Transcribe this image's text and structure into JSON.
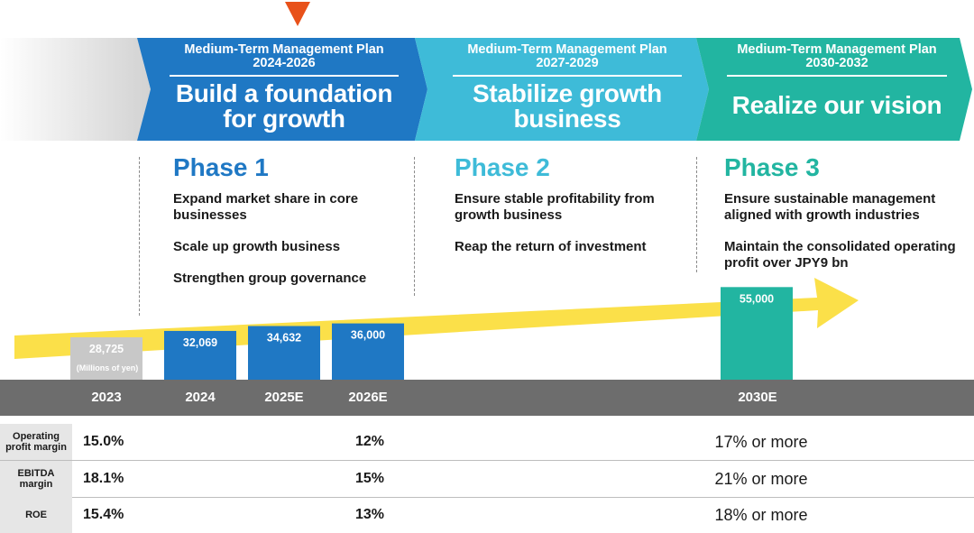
{
  "plans": [
    {
      "subtitle": "Medium-Term Management Plan",
      "years": "2024-2026",
      "title_line1": "Build a foundation",
      "title_line2": "for growth",
      "color": "#1f78c4"
    },
    {
      "subtitle": "Medium-Term Management Plan",
      "years": "2027-2029",
      "title_line1": "Stabilize growth",
      "title_line2": "business",
      "color": "#3ebbd8"
    },
    {
      "subtitle": "Medium-Term Management Plan",
      "years": "2030-2032",
      "title_line1": "Realize our vision",
      "title_line2": "",
      "color": "#22b5a1"
    }
  ],
  "phases": [
    {
      "title": "Phase 1",
      "color": "#1f78c4",
      "items": [
        "Expand market share in core businesses",
        "Scale up growth business",
        "Strengthen group governance"
      ]
    },
    {
      "title": "Phase 2",
      "color": "#3ebbd8",
      "items": [
        "Ensure stable profitability from growth business",
        "Reap the return of investment"
      ]
    },
    {
      "title": "Phase 3",
      "color": "#22b5a1",
      "items": [
        "Ensure sustainable management aligned with growth industries",
        "Maintain the consolidated operating profit over JPY9 bn"
      ]
    }
  ],
  "chart_data": {
    "type": "bar",
    "categories": [
      "2023",
      "2024",
      "2025E",
      "2026E",
      "2030E"
    ],
    "values": [
      28725,
      32069,
      34632,
      36000,
      55000
    ],
    "value_labels": [
      "28,725",
      "32,069",
      "34,632",
      "36,000",
      "55,000"
    ],
    "unit_note": "(Millions of yen)",
    "bar_colors": [
      "#c8c8c8",
      "#1f78c4",
      "#1f78c4",
      "#1f78c4",
      "#22b5a1"
    ],
    "arrow_color": "#fbe049",
    "current_marker_color": "#e8511a"
  },
  "metrics": [
    {
      "label": "Operating profit margin",
      "v2023": "15.0%",
      "v2026": "12%",
      "v2030": "17% or more"
    },
    {
      "label": "EBITDA margin",
      "v2023": "18.1%",
      "v2026": "15%",
      "v2030": "21% or more"
    },
    {
      "label": "ROE",
      "v2023": "15.4%",
      "v2026": "13%",
      "v2030": "18% or more"
    }
  ]
}
